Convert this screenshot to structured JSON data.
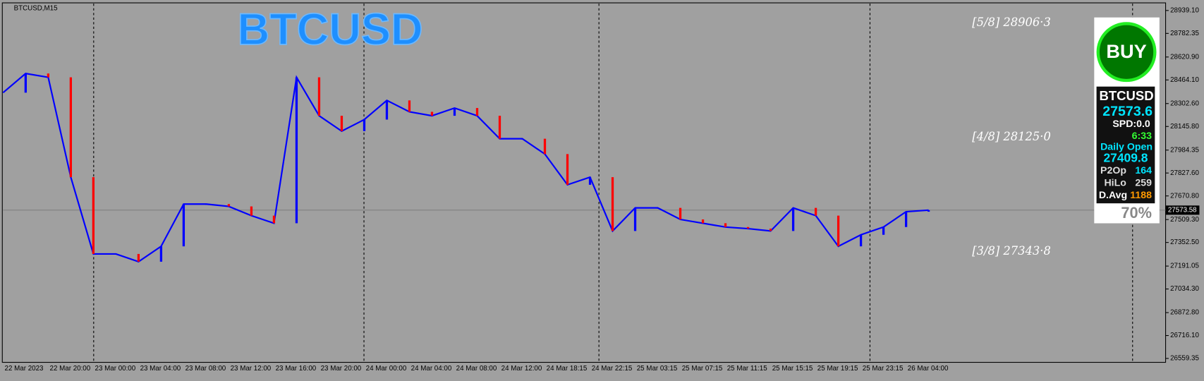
{
  "chart_data": {
    "type": "line",
    "title": "BTCUSD",
    "symbol": "BTCUSD,M15",
    "color": "#0000ff",
    "x": [
      "22 Mar 2023",
      null,
      "22 Mar 20:00",
      null,
      "23 Mar 00:00",
      null,
      "23 Mar 04:00",
      null,
      "23 Mar 08:00",
      null,
      "23 Mar 12:00",
      null,
      "23 Mar 16:00",
      null,
      "23 Mar 20:00",
      null,
      "24 Mar 00:00",
      null,
      "24 Mar 04:00",
      null,
      "24 Mar 08:00",
      null,
      "24 Mar 12:00",
      null,
      "24 Mar 18:15",
      null,
      "24 Mar 22:15",
      null,
      "25 Mar 03:15",
      null,
      "25 Mar 07:15",
      null,
      "25 Mar 11:15",
      null,
      "25 Mar 15:15",
      null,
      "25 Mar 19:15",
      null,
      "25 Mar 23:15",
      null,
      "26 Mar 04:00",
      null
    ],
    "values": [
      28377,
      28508,
      28482,
      27799,
      27274,
      27274,
      27221,
      27326,
      27615,
      27615,
      27599,
      27536,
      27484,
      28482,
      28219,
      28114,
      28193,
      28324,
      28246,
      28219,
      28272,
      28219,
      28062,
      28062,
      27957,
      27747,
      27799,
      27431,
      27589,
      27589,
      27510,
      27484,
      27458,
      27447,
      27431,
      27589,
      27536,
      27326,
      27405,
      27458,
      27563,
      27573.6
    ],
    "ylim": [
      26538,
      28986
    ],
    "yticks": [
      {
        "value": 28939.1,
        "label": "28939.10"
      },
      28782.35,
      {
        "value": 28620.9,
        "label": "28620.90"
      },
      {
        "value": 28464.1,
        "label": "28464.10"
      },
      {
        "value": 28302.6,
        "label": "28302.60"
      },
      {
        "value": 28145.8,
        "label": "28145.80"
      },
      27984.35,
      {
        "value": 27827.6,
        "label": "27827.60"
      },
      {
        "value": 27670.8,
        "label": "27670.80"
      },
      {
        "value": 27509.3,
        "label": "27509.30"
      },
      {
        "value": 27352.5,
        "label": "27352.50"
      },
      27191.05,
      {
        "value": 27034.3,
        "label": "27034.30"
      },
      {
        "value": 26872.8,
        "label": "26872.80"
      },
      {
        "value": 26716.1,
        "label": "26716.10"
      },
      26559.35
    ],
    "current_price": 27573.58,
    "annotations": [
      {
        "value": 28906.3,
        "label": "[5/8] 28906·3"
      },
      {
        "value": 28125.0,
        "label": "[4/8] 28125·0"
      },
      {
        "value": 27343.8,
        "label": "[3/8] 27343·8"
      }
    ]
  },
  "panel": {
    "signal": "BUY",
    "symbol": "BTCUSD",
    "price": "27573.6",
    "spread": "SPD:0.0",
    "timer": "6:33",
    "daily_open_label": "Daily Open",
    "daily_open": "27409.8",
    "rows": [
      [
        "P2Op",
        "164"
      ],
      [
        "HiLo",
        "259"
      ],
      [
        "D.Avg",
        "1188"
      ]
    ],
    "percent": "70%"
  }
}
